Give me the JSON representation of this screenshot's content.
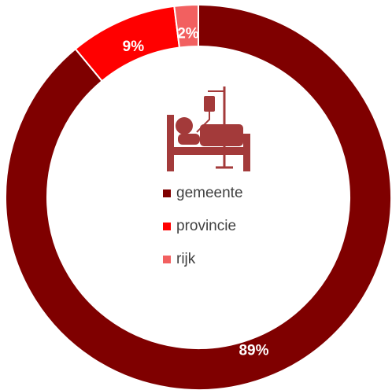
{
  "chart_data": {
    "type": "donut",
    "categories": [
      "gemeente",
      "provincie",
      "rijk"
    ],
    "values": [
      89,
      9,
      2
    ],
    "value_labels": [
      "89%",
      "9%",
      "2%"
    ],
    "colors": [
      "#7f0000",
      "#ff0000",
      "#f26060"
    ]
  }
}
